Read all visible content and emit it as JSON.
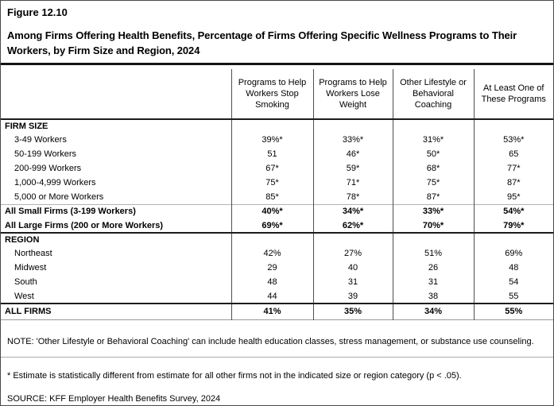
{
  "figure": {
    "number": "Figure 12.10",
    "title": "Among Firms Offering Health Benefits, Percentage of Firms Offering Specific Wellness Programs to Their Workers, by Firm Size and Region, 2024"
  },
  "table": {
    "columns": [
      "Programs to Help Workers Stop Smoking",
      "Programs to Help Workers Lose Weight",
      "Other Lifestyle or Behavioral Coaching",
      "At Least One of These Programs"
    ],
    "rows": [
      {
        "label": "FIRM SIZE",
        "type": "section",
        "values": [
          "",
          "",
          "",
          ""
        ]
      },
      {
        "label": "3-49 Workers",
        "type": "indent",
        "values": [
          "39%*",
          "33%*",
          "31%*",
          "53%*"
        ]
      },
      {
        "label": "50-199 Workers",
        "type": "indent",
        "values": [
          "51",
          "46*",
          "50*",
          "65"
        ]
      },
      {
        "label": "200-999 Workers",
        "type": "indent",
        "values": [
          "67*",
          "59*",
          "68*",
          "77*"
        ]
      },
      {
        "label": "1,000-4,999 Workers",
        "type": "indent",
        "values": [
          "75*",
          "71*",
          "75*",
          "87*"
        ]
      },
      {
        "label": "5,000 or More Workers",
        "type": "indent",
        "values": [
          "85*",
          "78*",
          "87*",
          "95*"
        ]
      },
      {
        "label": "All Small Firms (3-199 Workers)",
        "type": "bold",
        "sep": "light",
        "values": [
          "40%*",
          "34%*",
          "33%*",
          "54%*"
        ]
      },
      {
        "label": "All Large Firms (200 or More Workers)",
        "type": "bold",
        "values": [
          "69%*",
          "62%*",
          "70%*",
          "79%*"
        ]
      },
      {
        "label": "REGION",
        "type": "section",
        "sep": "dark",
        "values": [
          "",
          "",
          "",
          ""
        ]
      },
      {
        "label": "Northeast",
        "type": "indent",
        "values": [
          "42%",
          "27%",
          "51%",
          "69%"
        ]
      },
      {
        "label": "Midwest",
        "type": "indent",
        "values": [
          "29",
          "40",
          "26",
          "48"
        ]
      },
      {
        "label": "South",
        "type": "indent",
        "values": [
          "48",
          "31",
          "31",
          "54"
        ]
      },
      {
        "label": "West",
        "type": "indent",
        "values": [
          "44",
          "39",
          "38",
          "55"
        ]
      },
      {
        "label": "ALL FIRMS",
        "type": "bold",
        "sep": "dark",
        "last": true,
        "values": [
          "41%",
          "35%",
          "34%",
          "55%"
        ]
      }
    ]
  },
  "notes": {
    "note": "NOTE: 'Other Lifestyle or Behavioral Coaching' can include health education classes, stress management, or substance use counseling.",
    "estimate_note": " * Estimate is statistically different from estimate for all other firms not in the indicated size or region category (p < .05).",
    "source": "SOURCE: KFF Employer Health Benefits Survey, 2024"
  }
}
